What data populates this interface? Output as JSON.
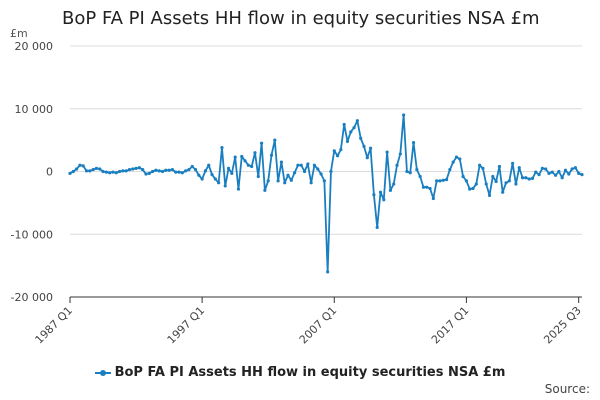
{
  "chart_data": {
    "type": "line",
    "title": "BoP FA PI Assets HH flow in equity securities NSA £m",
    "unit_label": "£m",
    "ylabel": "£m",
    "xlabel": "",
    "ylim": [
      -20000,
      20000
    ],
    "y_ticks": [
      {
        "value": 20000,
        "label": "20 000"
      },
      {
        "value": 10000,
        "label": "10 000"
      },
      {
        "value": 0,
        "label": "0"
      },
      {
        "value": -10000,
        "label": "-10 000"
      },
      {
        "value": -20000,
        "label": "-20 000"
      }
    ],
    "x_ticks": [
      {
        "index": 0,
        "label": "1987 Q1"
      },
      {
        "index": 40,
        "label": "1997 Q1"
      },
      {
        "index": 80,
        "label": "2007 Q1"
      },
      {
        "index": 120,
        "label": "2017 Q1"
      },
      {
        "index": 154,
        "label": "2025 Q3"
      }
    ],
    "grid": true,
    "legend_position": "bottom",
    "series": [
      {
        "name": "BoP FA PI Assets HH flow in equity securities NSA £m",
        "color": "#1a7fc0",
        "start": "1987 Q1",
        "values": [
          -300,
          0,
          400,
          1000,
          900,
          100,
          100,
          300,
          500,
          400,
          0,
          -100,
          -200,
          -100,
          -200,
          0,
          100,
          100,
          300,
          400,
          500,
          600,
          300,
          -400,
          -300,
          0,
          200,
          100,
          0,
          200,
          200,
          300,
          -100,
          -100,
          -200,
          100,
          300,
          800,
          300,
          -600,
          -1200,
          100,
          1000,
          -500,
          -1200,
          -1800,
          3800,
          -2300,
          500,
          -300,
          2300,
          -2800,
          2400,
          1700,
          1000,
          800,
          3000,
          -800,
          4500,
          -3000,
          -1500,
          2600,
          5000,
          -1500,
          1500,
          -1800,
          -600,
          -1400,
          -200,
          1000,
          1000,
          0,
          1200,
          -1800,
          1000,
          400,
          -400,
          -1500,
          -16000,
          0,
          3300,
          2500,
          3500,
          7500,
          4800,
          6300,
          7000,
          8100,
          5300,
          4000,
          2200,
          3700,
          -3700,
          -8900,
          -3300,
          -4500,
          3100,
          -3000,
          -2000,
          1000,
          2800,
          9000,
          0,
          -200,
          4600,
          300,
          -800,
          -2500,
          -2500,
          -2700,
          -4300,
          -1500,
          -1500,
          -1400,
          -1300,
          300,
          1500,
          2300,
          2000,
          -800,
          -1500,
          -2800,
          -2700,
          -2000,
          1000,
          500,
          -2000,
          -3800,
          -800,
          -1600,
          800,
          -3300,
          -1800,
          -1500,
          1300,
          -2000,
          600,
          -1000,
          -1000,
          -1200,
          -1100,
          -100,
          -500,
          500,
          400,
          -300,
          -100,
          -600,
          0,
          -1000,
          200,
          -400,
          400,
          600,
          -300,
          -500
        ]
      }
    ]
  },
  "source_label": "Source:"
}
